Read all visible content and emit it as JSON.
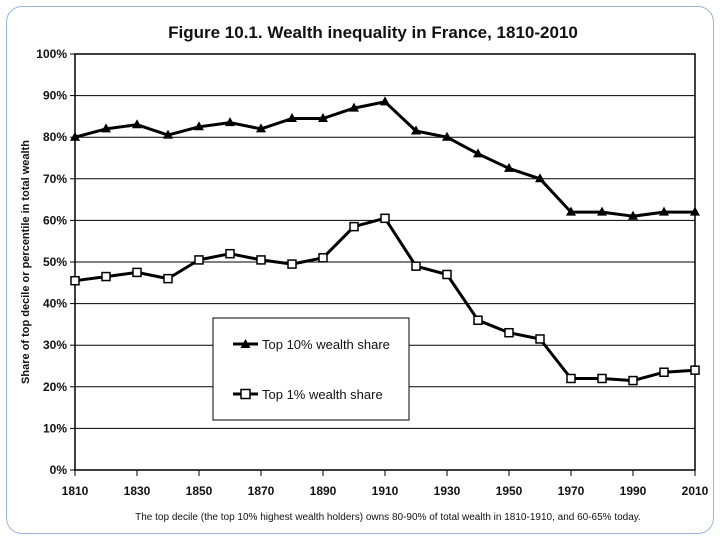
{
  "chart_data": {
    "type": "line",
    "title": "Figure 10.1. Wealth inequality in France, 1810-2010",
    "ylabel": "Share of top decile or percentile in total wealth",
    "xlabel": "",
    "caption": "The top decile (the top 10% highest wealth holders) owns 80-90% of total wealth in 1810-1910, and 60-65% today.",
    "xlim": [
      1810,
      2010
    ],
    "ylim": [
      0,
      100
    ],
    "x_ticks": [
      "1810",
      "1830",
      "1850",
      "1870",
      "1890",
      "1910",
      "1930",
      "1950",
      "1970",
      "1990",
      "2010"
    ],
    "y_ticks": [
      "0%",
      "10%",
      "20%",
      "30%",
      "40%",
      "50%",
      "60%",
      "70%",
      "80%",
      "90%",
      "100%"
    ],
    "x": [
      1810,
      1820,
      1830,
      1840,
      1850,
      1860,
      1870,
      1880,
      1890,
      1900,
      1910,
      1920,
      1930,
      1940,
      1950,
      1960,
      1970,
      1980,
      1990,
      2000,
      2010
    ],
    "grid": "horizontal",
    "legend_position": "bottom-center",
    "series": [
      {
        "name": "Top 10% wealth share",
        "marker": "filled-triangle",
        "values": [
          80,
          82,
          83,
          80.5,
          82.5,
          83.5,
          82,
          84.5,
          84.5,
          87,
          88.5,
          81.5,
          80,
          76,
          72.5,
          70,
          62,
          62,
          61,
          62,
          62
        ]
      },
      {
        "name": "Top 1% wealth share",
        "marker": "open-square",
        "values": [
          45.5,
          46.5,
          47.5,
          46,
          50.5,
          52,
          50.5,
          49.5,
          51,
          58.5,
          60.5,
          49,
          47,
          36,
          33,
          31.5,
          22,
          22,
          21.5,
          23.5,
          24
        ]
      }
    ],
    "colors": {
      "line": "#000000",
      "grid": "#000000"
    }
  }
}
